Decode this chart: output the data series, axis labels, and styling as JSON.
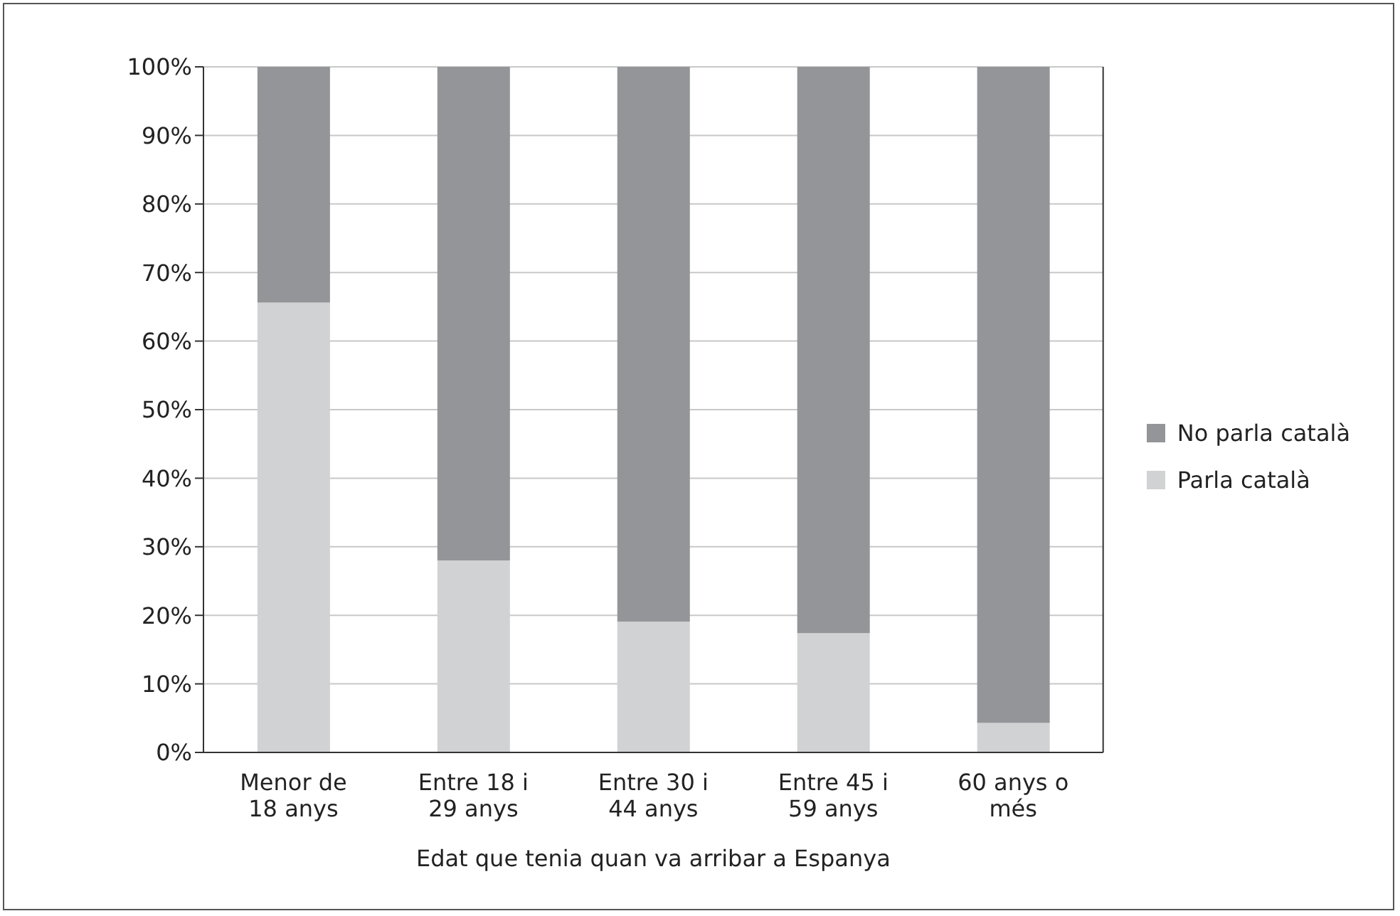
{
  "chart_data": {
    "type": "bar",
    "stacked": true,
    "xlabel": "Edat que tenia quan va arribar a Espanya",
    "categories": [
      "Menor de 18 anys",
      "Entre 18 i 29 anys",
      "Entre 30 i 44 anys",
      "Entre 45 i 59 anys",
      "60 anys o més"
    ],
    "series": [
      {
        "name": "Parla català",
        "color": "#d1d2d4",
        "values": [
          65.6,
          28.0,
          19.1,
          17.4,
          4.3
        ]
      },
      {
        "name": "No parla català",
        "color": "#939598",
        "values": [
          34.4,
          72.0,
          80.9,
          82.6,
          95.7
        ]
      }
    ],
    "ylim": [
      0,
      100
    ],
    "yticks": [
      {
        "value": 0,
        "label": "0%"
      },
      {
        "value": 10,
        "label": "10%"
      },
      {
        "value": 20,
        "label": "20%"
      },
      {
        "value": 30,
        "label": "30%"
      },
      {
        "value": 40,
        "label": "40%"
      },
      {
        "value": 50,
        "label": "50%"
      },
      {
        "value": 60,
        "label": "60%"
      },
      {
        "value": 70,
        "label": "70%"
      },
      {
        "value": 80,
        "label": "80%"
      },
      {
        "value": 90,
        "label": "90%"
      },
      {
        "value": 100,
        "label": "100%"
      }
    ],
    "grid": "y",
    "legend": "right"
  }
}
